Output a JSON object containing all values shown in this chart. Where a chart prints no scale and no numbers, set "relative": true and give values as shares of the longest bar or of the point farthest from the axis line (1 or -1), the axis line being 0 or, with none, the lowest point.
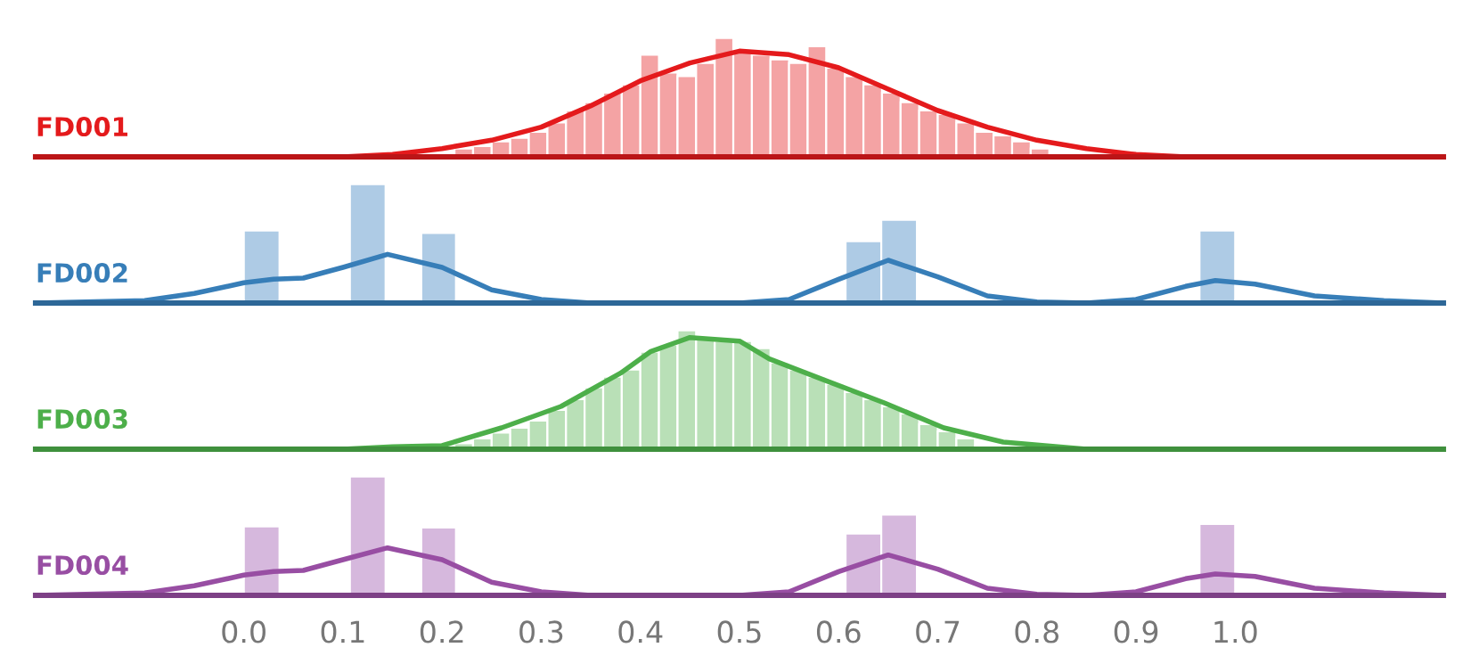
{
  "chart_data": [
    {
      "type": "histogram",
      "relative": true,
      "xlim": [
        -0.21,
        1.21
      ],
      "tick_labels": false,
      "series": [
        {
          "color": "#f4a3a4",
          "bins": [
            0.2125,
            0.23125,
            0.25,
            0.26875,
            0.2875,
            0.30625,
            0.325,
            0.34375,
            0.3625,
            0.38125,
            0.4,
            0.41875,
            0.4375,
            0.45625,
            0.475,
            0.49375,
            0.5125,
            0.53125,
            0.55,
            0.56875,
            0.5875,
            0.60625,
            0.625,
            0.64375,
            0.6625,
            0.68125,
            0.7,
            0.71875,
            0.7375,
            0.75625,
            0.775,
            0.79375,
            0.8125
          ],
          "values": [
            0.07,
            0.09,
            0.13,
            0.16,
            0.21,
            0.29,
            0.39,
            0.46,
            0.54,
            0.61,
            0.86,
            0.71,
            0.68,
            0.79,
            1,
            0.89,
            0.86,
            0.82,
            0.79,
            0.93,
            0.75,
            0.68,
            0.61,
            0.54,
            0.46,
            0.39,
            0.36,
            0.29,
            0.21,
            0.18,
            0.13,
            0.07
          ]
        },
        {
          "type": "line",
          "name": "FD001",
          "color": "#e41a1c",
          "x": [
            -0.21,
            0.1,
            0.15,
            0.2,
            0.25,
            0.3,
            0.35,
            0.4,
            0.45,
            0.5,
            0.55,
            0.6,
            0.65,
            0.7,
            0.75,
            0.8,
            0.85,
            0.9,
            0.95,
            1.21
          ],
          "values": [
            0,
            0,
            0.02,
            0.07,
            0.14,
            0.25,
            0.43,
            0.64,
            0.79,
            0.89,
            0.86,
            0.75,
            0.57,
            0.39,
            0.25,
            0.14,
            0.07,
            0.02,
            0,
            0
          ]
        }
      ]
    },
    {
      "type": "histogram",
      "relative": true,
      "xlim": [
        -0.21,
        1.21
      ],
      "tick_labels": false,
      "series": [
        {
          "color": "#aecbe5",
          "bins": [
            0,
            0.036
          ],
          "values": [
            0.61
          ]
        },
        {
          "color": "#aecbe5",
          "bins": [
            0.107,
            0.143,
            0.179,
            0.214
          ],
          "values": [
            1,
            0,
            0.59
          ]
        },
        {
          "color": "#aecbe5",
          "bins": [
            0.607,
            0.643,
            0.679
          ],
          "values": [
            0.52,
            0.7
          ]
        },
        {
          "color": "#aecbe5",
          "bins": [
            0.964,
            1.0
          ],
          "values": [
            0.61
          ]
        },
        {
          "type": "line",
          "name": "FD002",
          "color": "#377eb8",
          "x": [
            -0.21,
            -0.1,
            -0.05,
            0.0,
            0.03,
            0.06,
            0.1,
            0.145,
            0.2,
            0.25,
            0.3,
            0.35,
            0.5,
            0.55,
            0.6,
            0.65,
            0.7,
            0.75,
            0.8,
            0.85,
            0.9,
            0.95,
            0.98,
            1.02,
            1.08,
            1.15,
            1.21
          ],
          "values": [
            0,
            0.02,
            0.08,
            0.17,
            0.2,
            0.21,
            0.3,
            0.41,
            0.3,
            0.11,
            0.03,
            0,
            0,
            0.03,
            0.2,
            0.36,
            0.22,
            0.06,
            0.01,
            0,
            0.03,
            0.14,
            0.19,
            0.16,
            0.06,
            0.02,
            0
          ]
        }
      ]
    },
    {
      "type": "histogram",
      "relative": true,
      "xlim": [
        -0.21,
        1.21
      ],
      "tick_labels": false,
      "series": [
        {
          "color": "#b9e0b7",
          "bins": [
            0.2125,
            0.23125,
            0.25,
            0.26875,
            0.2875,
            0.30625,
            0.325,
            0.34375,
            0.3625,
            0.38125,
            0.4,
            0.41875,
            0.4375,
            0.45625,
            0.475,
            0.49375,
            0.5125,
            0.53125,
            0.55,
            0.56875,
            0.5875,
            0.60625,
            0.625,
            0.64375,
            0.6625,
            0.68125,
            0.7,
            0.71875,
            0.7375
          ],
          "values": [
            0.05,
            0.09,
            0.14,
            0.18,
            0.24,
            0.33,
            0.42,
            0.52,
            0.61,
            0.67,
            0.82,
            0.88,
            1,
            0.94,
            0.91,
            0.91,
            0.85,
            0.73,
            0.67,
            0.61,
            0.55,
            0.48,
            0.42,
            0.36,
            0.3,
            0.21,
            0.15,
            0.09
          ]
        },
        {
          "type": "line",
          "name": "FD003",
          "color": "#4daf4a",
          "x": [
            -0.21,
            0.1,
            0.15,
            0.2,
            0.26,
            0.32,
            0.38,
            0.41,
            0.45,
            0.5,
            0.53,
            0.586,
            0.646,
            0.706,
            0.766,
            0.85,
            1.21
          ],
          "values": [
            0,
            0,
            0.02,
            0.03,
            0.18,
            0.36,
            0.64,
            0.82,
            0.94,
            0.91,
            0.76,
            0.58,
            0.39,
            0.18,
            0.06,
            0,
            0
          ]
        }
      ]
    },
    {
      "type": "histogram",
      "relative": true,
      "xlim": [
        -0.21,
        1.21
      ],
      "xticks": [
        {
          "value": 0,
          "label": "0.0"
        },
        0.1,
        0.2,
        0.3,
        0.4,
        0.5,
        0.6,
        0.7,
        0.8,
        0.9,
        {
          "value": 1,
          "label": "1.0"
        }
      ],
      "tick_labels": "x",
      "series": [
        {
          "color": "#d6b8dd",
          "bins": [
            0,
            0.036
          ],
          "values": [
            0.58
          ]
        },
        {
          "color": "#d6b8dd",
          "bins": [
            0.107,
            0.143,
            0.179,
            0.214
          ],
          "values": [
            1,
            0,
            0.57
          ]
        },
        {
          "color": "#d6b8dd",
          "bins": [
            0.607,
            0.643,
            0.679
          ],
          "values": [
            0.52,
            0.68
          ]
        },
        {
          "color": "#d6b8dd",
          "bins": [
            0.964,
            1.0
          ],
          "values": [
            0.6
          ]
        },
        {
          "type": "line",
          "name": "FD004",
          "color": "#984ea3",
          "x": [
            -0.21,
            -0.1,
            -0.05,
            0.0,
            0.03,
            0.06,
            0.1,
            0.145,
            0.2,
            0.25,
            0.3,
            0.35,
            0.5,
            0.55,
            0.6,
            0.65,
            0.7,
            0.75,
            0.8,
            0.85,
            0.9,
            0.95,
            0.98,
            1.02,
            1.08,
            1.15,
            1.21
          ],
          "values": [
            0,
            0.02,
            0.08,
            0.17,
            0.2,
            0.21,
            0.3,
            0.4,
            0.3,
            0.11,
            0.03,
            0,
            0,
            0.03,
            0.2,
            0.34,
            0.22,
            0.06,
            0.01,
            0,
            0.03,
            0.14,
            0.18,
            0.16,
            0.06,
            0.02,
            0
          ]
        }
      ]
    }
  ]
}
